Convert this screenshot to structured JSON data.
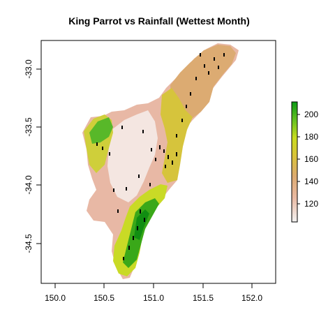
{
  "title": "King Parrot vs Rainfall (Wettest Month)",
  "x_ticks": [
    "150.0",
    "150.5",
    "151.0",
    "151.5",
    "152.0"
  ],
  "y_ticks": [
    "-33.0",
    "-33.5",
    "-34.0",
    "-34.5"
  ],
  "legend": {
    "ticks": [
      "120",
      "140",
      "160",
      "180",
      "200"
    ],
    "range": [
      105,
      212
    ],
    "colors": [
      "#f2f2f2",
      "#e9b9a3",
      "#dcaa70",
      "#d9c33a",
      "#c8dc1e",
      "#63c01f",
      "#0a9a14"
    ]
  }
}
